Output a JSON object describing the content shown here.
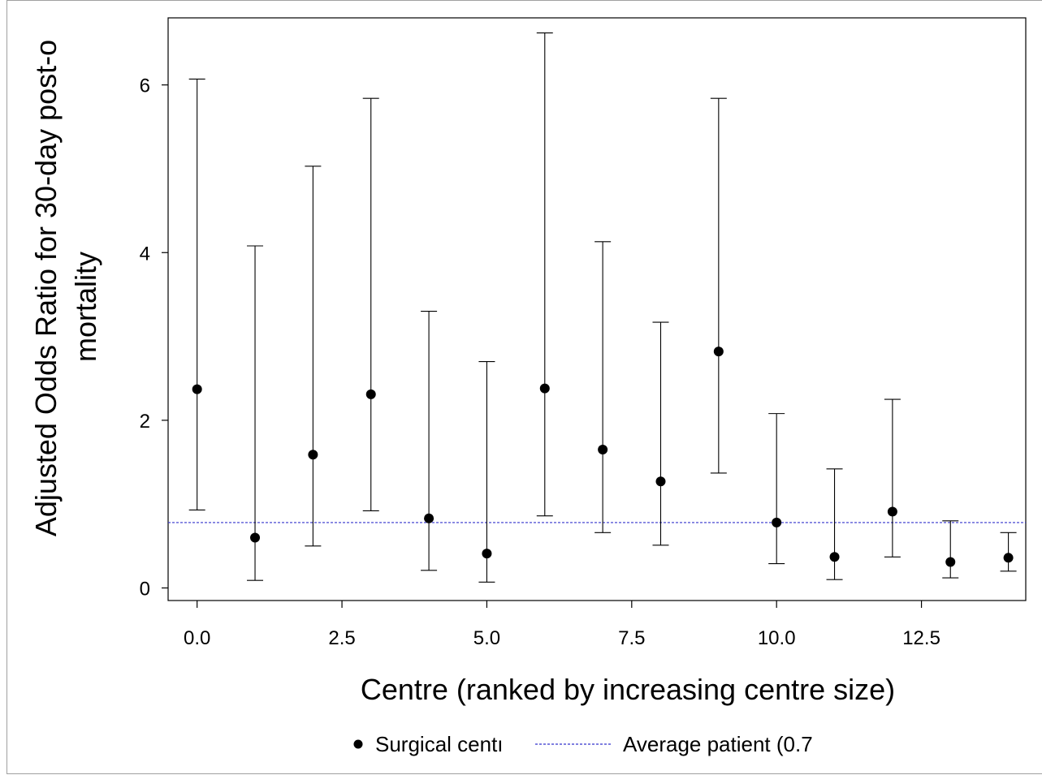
{
  "chart_data": {
    "type": "scatter",
    "xlabel": "Centre (ranked by increasing centre size)",
    "ylabel": "Adjusted Odds Ratio for 30-day post-o",
    "ylabel_line2": "mortality",
    "xlim": [
      -0.5,
      14.3
    ],
    "ylim": [
      -0.15,
      6.8
    ],
    "x_ticks": [
      0.0,
      2.5,
      5.0,
      7.5,
      10.0,
      12.5
    ],
    "x_tick_labels": [
      "0.0",
      "2.5",
      "5.0",
      "7.5",
      "10.0",
      "12.5"
    ],
    "y_ticks": [
      0,
      2,
      4,
      6
    ],
    "y_tick_labels": [
      "0",
      "2",
      "4",
      "6"
    ],
    "grid": false,
    "legend_position": "bottom",
    "series": [
      {
        "name": "Surgical centı",
        "marker": "circle",
        "color": "#000000",
        "points": [
          {
            "x": 0,
            "y": 2.37,
            "lower": 0.93,
            "upper": 6.07
          },
          {
            "x": 1,
            "y": 0.6,
            "lower": 0.09,
            "upper": 4.08
          },
          {
            "x": 2,
            "y": 1.59,
            "lower": 0.5,
            "upper": 5.03
          },
          {
            "x": 3,
            "y": 2.31,
            "lower": 0.92,
            "upper": 5.84
          },
          {
            "x": 4,
            "y": 0.83,
            "lower": 0.21,
            "upper": 3.3
          },
          {
            "x": 5,
            "y": 0.41,
            "lower": 0.07,
            "upper": 2.7
          },
          {
            "x": 6,
            "y": 2.38,
            "lower": 0.86,
            "upper": 6.62
          },
          {
            "x": 7,
            "y": 1.65,
            "lower": 0.66,
            "upper": 4.13
          },
          {
            "x": 8,
            "y": 1.27,
            "lower": 0.51,
            "upper": 3.17
          },
          {
            "x": 9,
            "y": 2.82,
            "lower": 1.37,
            "upper": 5.84
          },
          {
            "x": 10,
            "y": 0.78,
            "lower": 0.29,
            "upper": 2.08
          },
          {
            "x": 11,
            "y": 0.37,
            "lower": 0.1,
            "upper": 1.42
          },
          {
            "x": 12,
            "y": 0.91,
            "lower": 0.37,
            "upper": 2.25
          },
          {
            "x": 13,
            "y": 0.31,
            "lower": 0.12,
            "upper": 0.8
          },
          {
            "x": 14,
            "y": 0.36,
            "lower": 0.2,
            "upper": 0.66
          }
        ]
      },
      {
        "name": "Average patient (0.7",
        "type": "hline",
        "y": 0.78,
        "color": "#3333cc",
        "style": "dashed"
      }
    ]
  }
}
